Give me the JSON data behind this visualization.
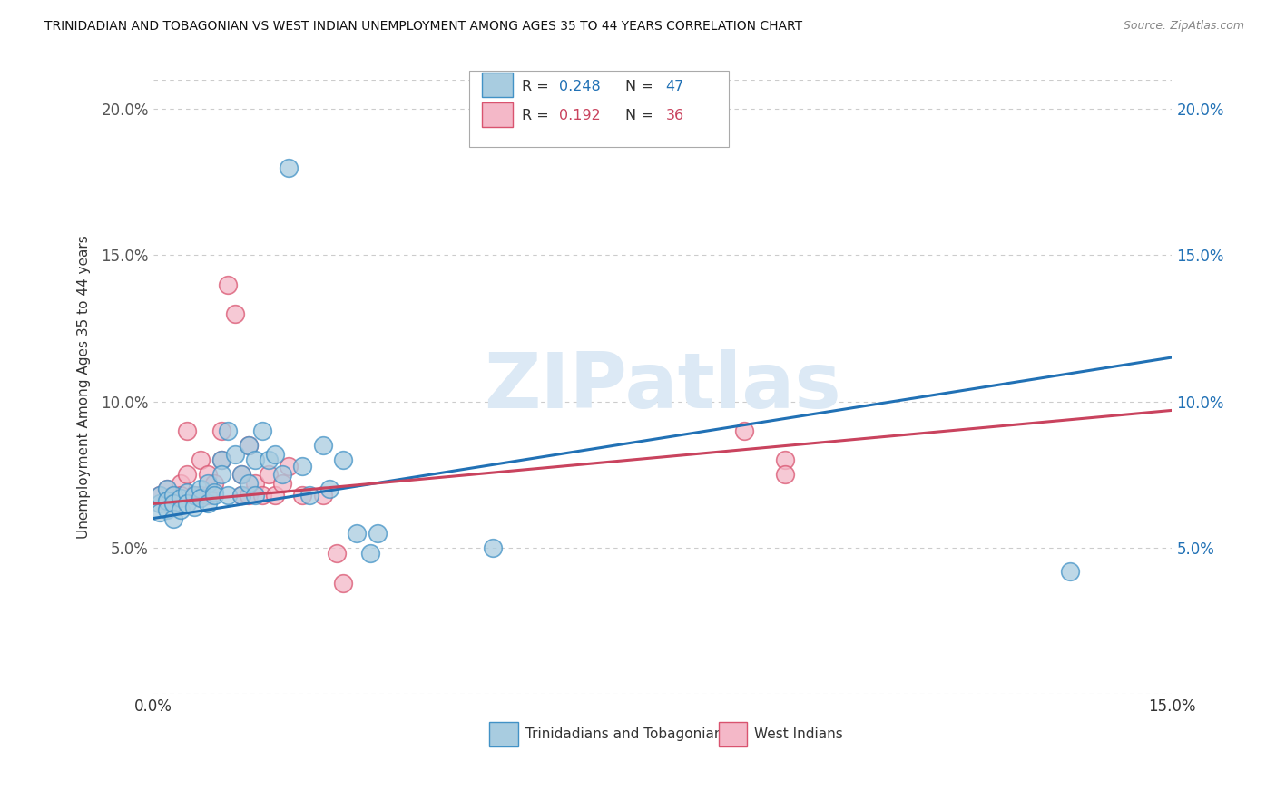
{
  "title": "TRINIDADIAN AND TOBAGONIAN VS WEST INDIAN UNEMPLOYMENT AMONG AGES 35 TO 44 YEARS CORRELATION CHART",
  "source": "Source: ZipAtlas.com",
  "ylabel": "Unemployment Among Ages 35 to 44 years",
  "xlim": [
    0.0,
    0.15
  ],
  "ylim": [
    0.0,
    0.21
  ],
  "yticks": [
    0.05,
    0.1,
    0.15,
    0.2
  ],
  "ytick_labels": [
    "5.0%",
    "10.0%",
    "15.0%",
    "20.0%"
  ],
  "legend_entries": [
    {
      "label": "Trinidadians and Tobagonians",
      "R": "0.248",
      "N": "47",
      "dot_color": "#a8cce0",
      "edge_color": "#4292c6"
    },
    {
      "label": "West Indians",
      "R": "0.192",
      "N": "36",
      "dot_color": "#f4b8c8",
      "edge_color": "#d9536f"
    }
  ],
  "tt_points": [
    [
      0.001,
      0.065
    ],
    [
      0.001,
      0.068
    ],
    [
      0.001,
      0.062
    ],
    [
      0.002,
      0.07
    ],
    [
      0.002,
      0.066
    ],
    [
      0.002,
      0.063
    ],
    [
      0.003,
      0.068
    ],
    [
      0.003,
      0.065
    ],
    [
      0.003,
      0.06
    ],
    [
      0.004,
      0.067
    ],
    [
      0.004,
      0.063
    ],
    [
      0.005,
      0.069
    ],
    [
      0.005,
      0.065
    ],
    [
      0.006,
      0.068
    ],
    [
      0.006,
      0.064
    ],
    [
      0.007,
      0.07
    ],
    [
      0.007,
      0.067
    ],
    [
      0.008,
      0.072
    ],
    [
      0.008,
      0.065
    ],
    [
      0.009,
      0.069
    ],
    [
      0.009,
      0.068
    ],
    [
      0.01,
      0.08
    ],
    [
      0.01,
      0.075
    ],
    [
      0.011,
      0.09
    ],
    [
      0.011,
      0.068
    ],
    [
      0.012,
      0.082
    ],
    [
      0.013,
      0.075
    ],
    [
      0.013,
      0.068
    ],
    [
      0.014,
      0.085
    ],
    [
      0.014,
      0.072
    ],
    [
      0.015,
      0.08
    ],
    [
      0.015,
      0.068
    ],
    [
      0.016,
      0.09
    ],
    [
      0.017,
      0.08
    ],
    [
      0.018,
      0.082
    ],
    [
      0.019,
      0.075
    ],
    [
      0.02,
      0.18
    ],
    [
      0.022,
      0.078
    ],
    [
      0.023,
      0.068
    ],
    [
      0.025,
      0.085
    ],
    [
      0.026,
      0.07
    ],
    [
      0.028,
      0.08
    ],
    [
      0.03,
      0.055
    ],
    [
      0.032,
      0.048
    ],
    [
      0.033,
      0.055
    ],
    [
      0.05,
      0.05
    ],
    [
      0.135,
      0.042
    ]
  ],
  "wi_points": [
    [
      0.001,
      0.068
    ],
    [
      0.002,
      0.065
    ],
    [
      0.002,
      0.07
    ],
    [
      0.003,
      0.068
    ],
    [
      0.003,
      0.065
    ],
    [
      0.004,
      0.072
    ],
    [
      0.004,
      0.068
    ],
    [
      0.005,
      0.075
    ],
    [
      0.005,
      0.09
    ],
    [
      0.006,
      0.068
    ],
    [
      0.007,
      0.08
    ],
    [
      0.007,
      0.068
    ],
    [
      0.008,
      0.075
    ],
    [
      0.008,
      0.068
    ],
    [
      0.009,
      0.072
    ],
    [
      0.01,
      0.09
    ],
    [
      0.01,
      0.08
    ],
    [
      0.011,
      0.14
    ],
    [
      0.012,
      0.13
    ],
    [
      0.013,
      0.075
    ],
    [
      0.013,
      0.068
    ],
    [
      0.014,
      0.085
    ],
    [
      0.014,
      0.068
    ],
    [
      0.015,
      0.072
    ],
    [
      0.016,
      0.068
    ],
    [
      0.017,
      0.075
    ],
    [
      0.018,
      0.068
    ],
    [
      0.019,
      0.072
    ],
    [
      0.02,
      0.078
    ],
    [
      0.022,
      0.068
    ],
    [
      0.025,
      0.068
    ],
    [
      0.027,
      0.048
    ],
    [
      0.028,
      0.038
    ],
    [
      0.087,
      0.09
    ],
    [
      0.093,
      0.08
    ],
    [
      0.093,
      0.075
    ]
  ],
  "tt_line_color": "#2171b5",
  "wi_line_color": "#c9435e",
  "tt_dot_color": "#a8cce0",
  "tt_edge_color": "#4292c6",
  "wi_dot_color": "#f4b8c8",
  "wi_edge_color": "#d9536f",
  "background_color": "#ffffff",
  "watermark_text": "ZIPatlas",
  "watermark_color": "#dce9f5"
}
